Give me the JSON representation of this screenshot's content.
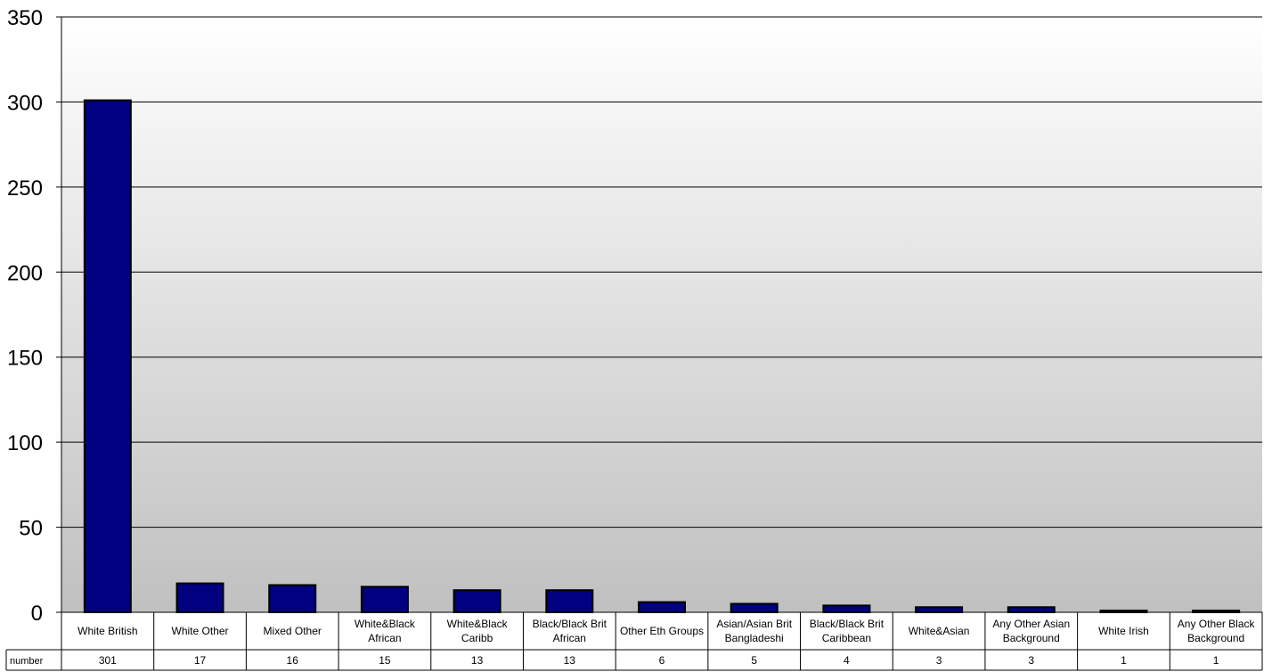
{
  "chart_data": {
    "type": "bar",
    "categories": [
      "White British",
      "White Other",
      "Mixed Other",
      "White&Black African",
      "White&Black Caribb",
      "Black/Black Brit African",
      "Other Eth Groups",
      "Asian/Asian Brit Bangladeshi",
      "Black/Black Brit Caribbean",
      "White&Asian",
      "Any Other Asian Background",
      "White Irish",
      "Any Other Black Background"
    ],
    "series": [
      {
        "name": "number",
        "values": [
          301,
          17,
          16,
          15,
          13,
          13,
          6,
          5,
          4,
          3,
          3,
          1,
          1
        ]
      }
    ],
    "ylim": [
      0,
      350
    ],
    "yticks": [
      "0",
      "50",
      "100",
      "150",
      "200",
      "250",
      "300",
      "350"
    ],
    "grid": true,
    "legend": "data table below plot",
    "data_table_row_label": "number",
    "colors": {
      "bar": "#000080",
      "bar_edge": "#000000",
      "grid": "#000000",
      "bg_top": "#ffffff",
      "bg_bottom": "#c0c0c0"
    }
  }
}
